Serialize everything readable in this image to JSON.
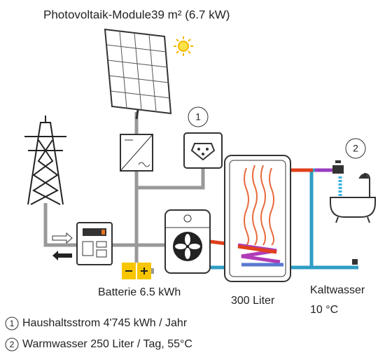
{
  "header": {
    "title": "Photovoltaik-Module39 m² (6.7 kW)"
  },
  "nodes": [
    {
      "marker": "1"
    },
    {
      "marker": "2"
    },
    {
      "label": "Batterie 6.5 kWh"
    },
    {
      "label": "300 Liter"
    },
    {
      "label": "Kaltwasser",
      "sublabel": "10 °C"
    }
  ],
  "legend": [
    {
      "marker": "1",
      "text": "Haushaltsstrom 4'745 kWh / Jahr"
    },
    {
      "marker": "2",
      "text": "Warmwasser 250 Liter / Tag, 55°C"
    }
  ]
}
